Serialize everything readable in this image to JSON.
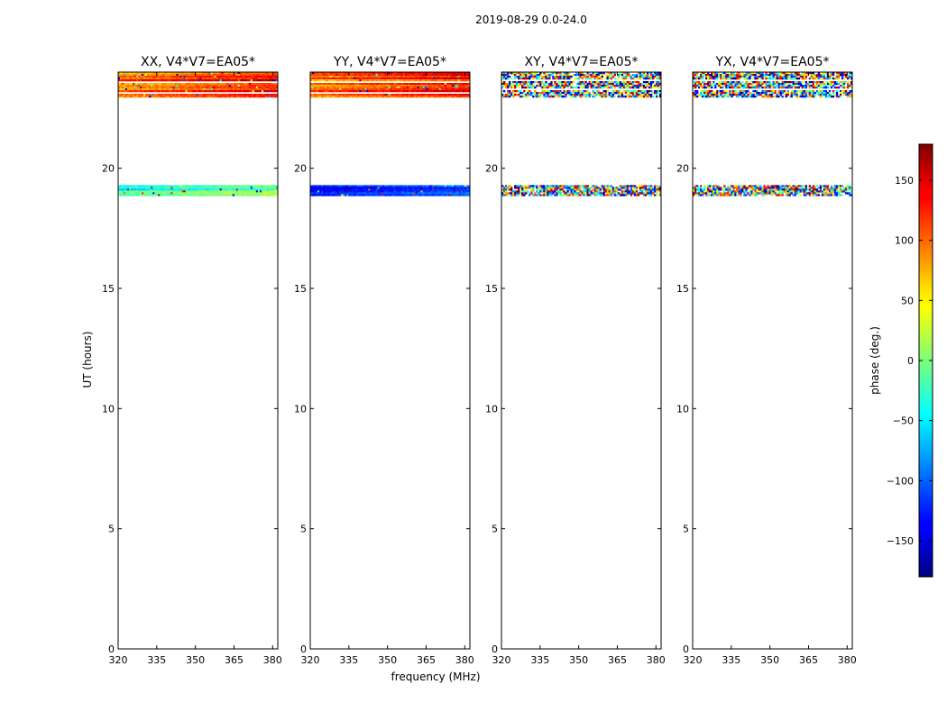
{
  "chart_data": {
    "type": "heatmap",
    "suptitle": "2019-08-29 0.0-24.0",
    "xlabel": "frequency (MHz)",
    "ylabel": "UT (hours)",
    "xlim": [
      320,
      382
    ],
    "ylim": [
      0,
      24
    ],
    "xticks": [
      320,
      335,
      350,
      365,
      380
    ],
    "yticks": [
      0,
      5,
      10,
      15,
      20
    ],
    "colorbar": {
      "label": "phase (deg.)",
      "range": [
        -180,
        180
      ],
      "ticks": [
        -150,
        -100,
        -50,
        0,
        50,
        100,
        150
      ],
      "tick_labels": [
        "−150",
        "−100",
        "−50",
        "0",
        "50",
        "100",
        "150"
      ],
      "colormap": "jet"
    },
    "panels": [
      {
        "title": "XX, V4*V7=EA05*",
        "data_bands": [
          {
            "ut_start": 22.95,
            "ut_end": 24.0,
            "phase_center_deg": 120,
            "phase_spread_deg": 70,
            "style": "coherent"
          },
          {
            "ut_start": 18.85,
            "ut_end": 19.3,
            "phase_center_deg": -20,
            "phase_spread_deg": 60,
            "style": "coherent"
          }
        ]
      },
      {
        "title": "YY, V4*V7=EA05*",
        "data_bands": [
          {
            "ut_start": 22.95,
            "ut_end": 24.0,
            "phase_center_deg": 110,
            "phase_spread_deg": 60,
            "style": "coherent"
          },
          {
            "ut_start": 18.85,
            "ut_end": 19.3,
            "phase_center_deg": -120,
            "phase_spread_deg": 50,
            "style": "coherent"
          }
        ]
      },
      {
        "title": "XY, V4*V7=EA05*",
        "data_bands": [
          {
            "ut_start": 22.95,
            "ut_end": 24.0,
            "phase_center_deg": 0,
            "phase_spread_deg": 180,
            "style": "noise"
          },
          {
            "ut_start": 18.85,
            "ut_end": 19.3,
            "phase_center_deg": 0,
            "phase_spread_deg": 180,
            "style": "noise"
          }
        ]
      },
      {
        "title": "YX, V4*V7=EA05*",
        "data_bands": [
          {
            "ut_start": 22.95,
            "ut_end": 24.0,
            "phase_center_deg": 0,
            "phase_spread_deg": 180,
            "style": "noise"
          },
          {
            "ut_start": 18.85,
            "ut_end": 19.3,
            "phase_center_deg": 0,
            "phase_spread_deg": 180,
            "style": "noise"
          }
        ]
      }
    ]
  }
}
